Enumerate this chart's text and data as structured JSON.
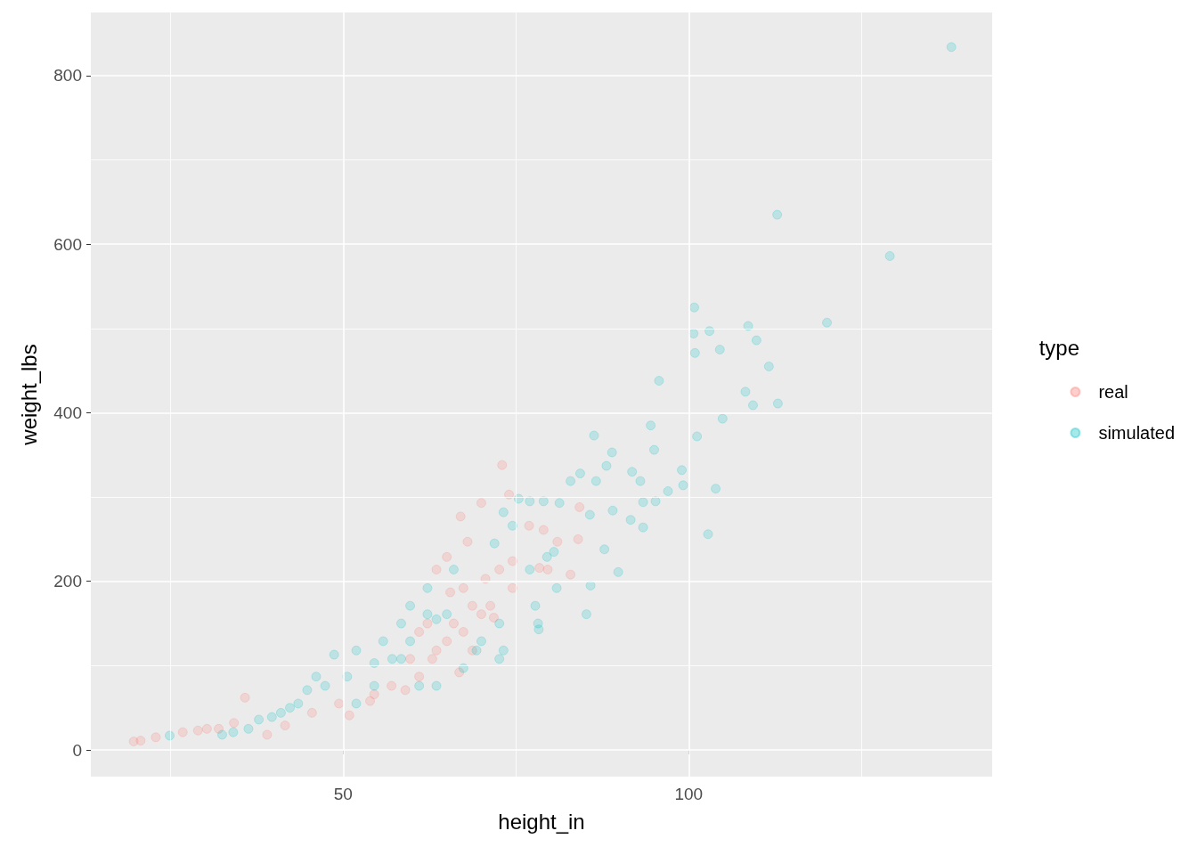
{
  "chart_data": {
    "type": "scatter",
    "xlabel": "height_in",
    "ylabel": "weight_lbs",
    "legend_title": "type",
    "legend": "right",
    "grid": true,
    "marker": "circle",
    "xlim": [
      13.5,
      143.9
    ],
    "ylim": [
      -31.7,
      875
    ],
    "xticks": [
      {
        "value": 25,
        "label": null
      },
      50,
      {
        "value": 75,
        "label": null
      },
      100,
      {
        "value": 125,
        "label": null
      }
    ],
    "yticks": [
      0,
      {
        "value": 100,
        "label": null
      },
      200,
      {
        "value": 300,
        "label": null
      },
      400,
      {
        "value": 500,
        "label": null
      },
      600,
      {
        "value": 700,
        "label": null
      },
      800
    ],
    "series": [
      {
        "name": "real",
        "color": "#f8766d",
        "x": [
          19.7,
          20.7,
          22.9,
          26.8,
          29,
          30.3,
          32,
          35.8,
          34.2,
          50.9,
          53.9,
          59,
          62.9,
          63.5,
          65,
          67,
          68,
          70,
          73,
          74,
          76.9,
          79,
          81,
          84.2,
          78.4,
          79.6,
          82.9,
          84,
          65,
          66,
          67.4,
          68.7,
          70,
          71.3,
          71.8,
          74.5,
          63.5,
          62.2,
          61,
          66.8,
          68.7,
          70.6,
          72.6,
          74.5,
          67.4,
          65.5,
          59.7,
          61,
          57,
          54.5,
          49.4,
          45.5,
          41.6,
          39
        ],
        "values": [
          10,
          11,
          15,
          21,
          23,
          25,
          25,
          62,
          32,
          41,
          58,
          71,
          108,
          214,
          229,
          277,
          247,
          293,
          338,
          303,
          266,
          261,
          247,
          288,
          216,
          214,
          208,
          250,
          129,
          150,
          140,
          118,
          161,
          171,
          157,
          192,
          118,
          150,
          140,
          92,
          171,
          203,
          214,
          224,
          192,
          187,
          108,
          87,
          76,
          66,
          55,
          44,
          29,
          18
        ]
      },
      {
        "name": "simulated",
        "color": "#00bfc4",
        "x": [
          138,
          112.8,
          129.1,
          120,
          100.8,
          100.7,
          103,
          100.9,
          104.5,
          108.6,
          109.8,
          111.6,
          108.2,
          109.3,
          112.9,
          104.9,
          95.7,
          94.5,
          95,
          101.2,
          99,
          99.2,
          97,
          95.2,
          103.9,
          102.8,
          93.4,
          93.4,
          91.6,
          91.8,
          93,
          88.9,
          88.1,
          86.3,
          86.6,
          84.3,
          82.9,
          89,
          85.7,
          87.8,
          89.8,
          85.8,
          85.2,
          78.2,
          78.3,
          77.8,
          77,
          73.2,
          75.4,
          79,
          81.3,
          79.5,
          80.5,
          77,
          80.9,
          72.6,
          73.2,
          70,
          65,
          62.2,
          59.7,
          58.4,
          57.1,
          54.5,
          51.9,
          50.6,
          48.7,
          47.4,
          46.1,
          44.8,
          43.5,
          42.3,
          41,
          39.7,
          37.8,
          36.3,
          34.1,
          32.5,
          24.9,
          51.9,
          54.5,
          61,
          63.5,
          67.4,
          69.3,
          66,
          71.9,
          74.5,
          63.5,
          59.7,
          58.4,
          55.8,
          62.2,
          72.6
        ],
        "values": [
          834,
          635,
          586,
          507,
          525,
          494,
          497,
          471,
          475,
          503,
          486,
          455,
          425,
          409,
          411,
          393,
          438,
          385,
          356,
          372,
          332,
          314,
          307,
          295,
          310,
          256,
          294,
          264,
          273,
          330,
          319,
          353,
          337,
          373,
          319,
          328,
          319,
          284,
          279,
          238,
          211,
          195,
          161,
          150,
          143,
          171,
          295,
          282,
          298,
          295,
          293,
          229,
          235,
          214,
          192,
          150,
          118,
          129,
          161,
          161,
          129,
          108,
          108,
          103,
          118,
          87,
          113,
          76,
          87,
          71,
          55,
          50,
          44,
          39,
          36,
          25,
          21,
          18,
          17,
          55,
          76,
          76,
          76,
          97,
          118,
          214,
          245,
          266,
          155,
          171,
          150,
          129,
          192,
          108
        ]
      }
    ]
  }
}
